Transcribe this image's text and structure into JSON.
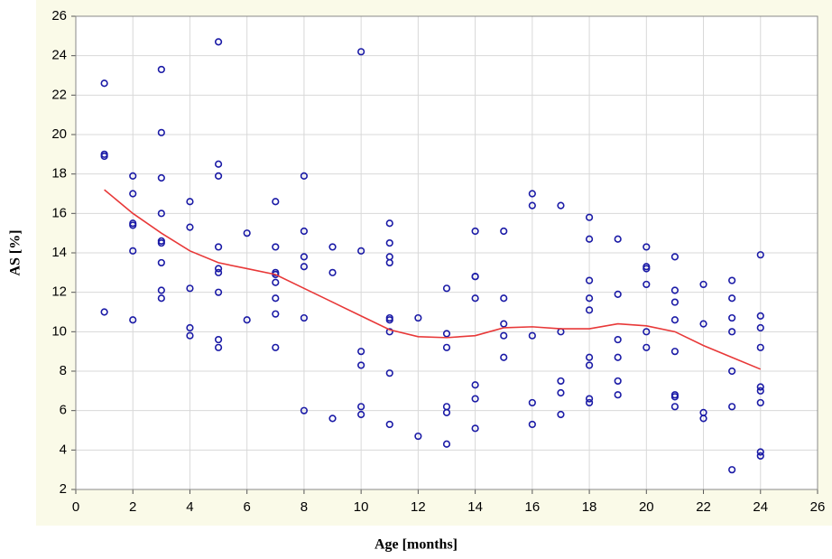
{
  "chart_data": {
    "type": "scatter",
    "x_label": "Age [months]",
    "y_label": "AS [%]",
    "xlim": [
      0,
      26
    ],
    "ylim": [
      2,
      26
    ],
    "xticks": [
      0,
      2,
      4,
      6,
      8,
      10,
      12,
      14,
      16,
      18,
      20,
      22,
      24,
      26
    ],
    "yticks": [
      2,
      4,
      6,
      8,
      10,
      12,
      14,
      16,
      18,
      20,
      22,
      24,
      26
    ],
    "grid": true,
    "series": [
      {
        "type": "scatter",
        "color": "#1a1aa6",
        "x": [
          1,
          1,
          1,
          1,
          2,
          2,
          2,
          2,
          2,
          2,
          3,
          3,
          3,
          3,
          3,
          3,
          3,
          3,
          3,
          4,
          4,
          4,
          4,
          4,
          5,
          5,
          5,
          5,
          5,
          5,
          5,
          5,
          5,
          6,
          6,
          7,
          7,
          7,
          7,
          7,
          7,
          7,
          7,
          8,
          8,
          8,
          8,
          8,
          8,
          9,
          9,
          9,
          10,
          10,
          10,
          10,
          10,
          10,
          11,
          11,
          11,
          11,
          11,
          11,
          11,
          11,
          11,
          12,
          12,
          13,
          13,
          13,
          13,
          13,
          13,
          14,
          14,
          14,
          14,
          14,
          14,
          14,
          15,
          15,
          15,
          15,
          15,
          16,
          16,
          16,
          16,
          16,
          17,
          17,
          17,
          17,
          17,
          18,
          18,
          18,
          18,
          18,
          18,
          18,
          18,
          18,
          19,
          19,
          19,
          19,
          19,
          19,
          20,
          20,
          20,
          20,
          20,
          20,
          21,
          21,
          21,
          21,
          21,
          21,
          21,
          21,
          22,
          22,
          22,
          22,
          23,
          23,
          23,
          23,
          23,
          23,
          23,
          24,
          24,
          24,
          24,
          24,
          24,
          24,
          24,
          24
        ],
        "values": [
          22.6,
          19.0,
          18.9,
          11.0,
          17.9,
          17.0,
          15.5,
          15.4,
          14.1,
          10.6,
          23.3,
          20.1,
          17.8,
          16.0,
          14.6,
          14.5,
          13.5,
          12.1,
          11.7,
          16.6,
          15.3,
          12.2,
          10.2,
          9.8,
          24.7,
          18.5,
          17.9,
          14.3,
          13.2,
          13.0,
          12.0,
          9.6,
          9.2,
          15.0,
          10.6,
          16.6,
          14.3,
          13.0,
          12.9,
          12.5,
          11.7,
          10.9,
          9.2,
          17.9,
          15.1,
          13.8,
          13.3,
          10.7,
          6.0,
          14.3,
          13.0,
          5.6,
          24.2,
          14.1,
          9.0,
          8.3,
          6.2,
          5.8,
          15.5,
          14.5,
          13.8,
          13.5,
          10.7,
          10.6,
          10.0,
          7.9,
          5.3,
          10.7,
          4.7,
          12.2,
          9.9,
          9.2,
          6.2,
          5.9,
          4.3,
          15.1,
          12.8,
          12.8,
          11.7,
          7.3,
          6.6,
          5.1,
          15.1,
          11.7,
          10.4,
          9.8,
          8.7,
          17.0,
          16.4,
          9.8,
          6.4,
          5.3,
          16.4,
          10.0,
          7.5,
          6.9,
          5.8,
          15.8,
          14.7,
          12.6,
          11.7,
          11.1,
          8.7,
          8.3,
          6.6,
          6.4,
          14.7,
          11.9,
          9.6,
          8.7,
          7.5,
          6.8,
          14.3,
          13.3,
          13.2,
          12.4,
          10.0,
          9.2,
          13.8,
          12.1,
          11.5,
          10.6,
          9.0,
          6.8,
          6.7,
          6.2,
          12.4,
          10.4,
          5.9,
          5.6,
          12.6,
          11.7,
          10.7,
          10.0,
          8.0,
          6.2,
          3.0,
          13.9,
          10.8,
          10.2,
          9.2,
          7.2,
          7.0,
          6.4,
          3.9,
          3.7
        ]
      },
      {
        "type": "line",
        "color": "#e83838",
        "x": [
          1,
          2,
          3,
          4,
          5,
          6,
          7,
          8,
          9,
          10,
          11,
          12,
          13,
          14,
          15,
          16,
          17,
          18,
          19,
          20,
          21,
          22,
          23,
          24
        ],
        "values": [
          17.2,
          16.0,
          15.0,
          14.1,
          13.5,
          13.2,
          12.9,
          12.2,
          11.5,
          10.8,
          10.1,
          9.75,
          9.7,
          9.8,
          10.2,
          10.25,
          10.15,
          10.15,
          10.4,
          10.3,
          10.0,
          9.3,
          8.7,
          8.1
        ]
      }
    ]
  }
}
